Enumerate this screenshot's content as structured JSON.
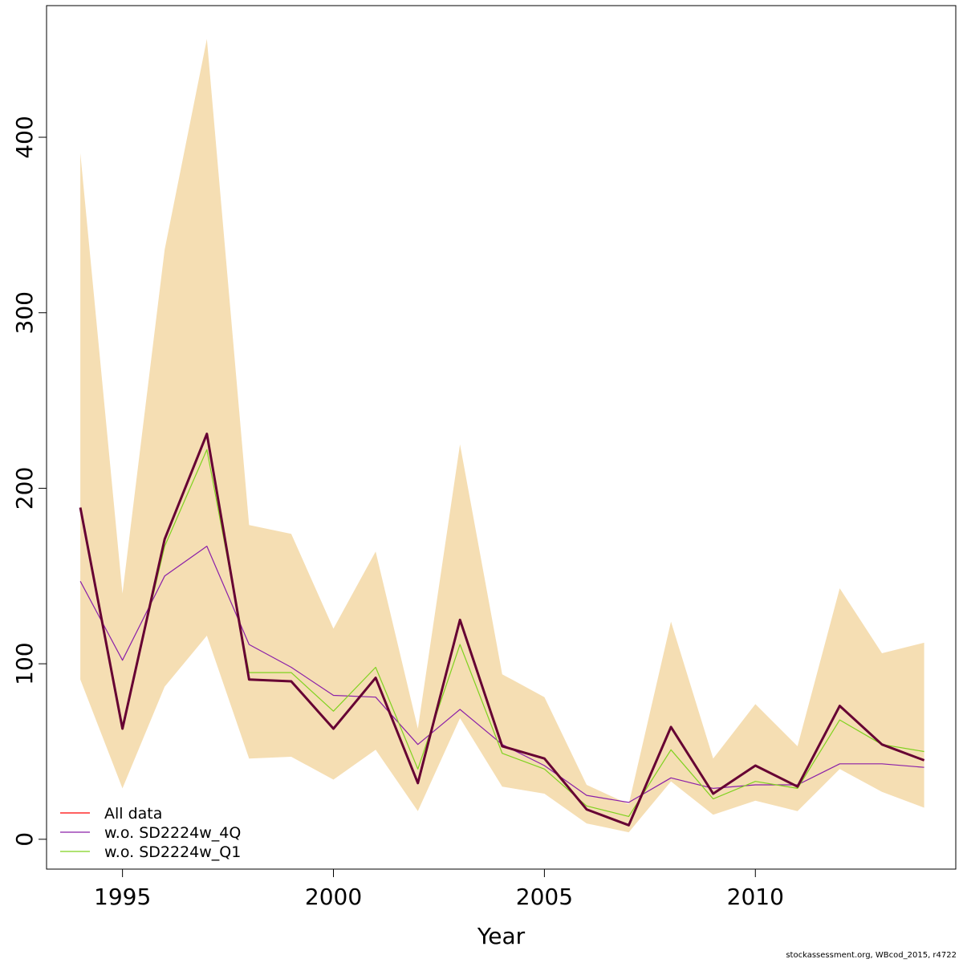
{
  "chart_data": {
    "type": "line",
    "title": "",
    "xlabel": "Year",
    "ylabel": "",
    "xlim": [
      1993.2,
      2014.75
    ],
    "ylim": [
      -17,
      475
    ],
    "x_ticks": [
      1995,
      2000,
      2005,
      2010
    ],
    "y_ticks": [
      0,
      100,
      200,
      300,
      400
    ],
    "grid": false,
    "legend_position": "bottom-left",
    "years": [
      1994,
      1995,
      1996,
      1997,
      1998,
      1999,
      2000,
      2001,
      2002,
      2003,
      2004,
      2005,
      2006,
      2007,
      2008,
      2009,
      2010,
      2011,
      2012,
      2013,
      2014
    ],
    "band": {
      "color": "#f5deb3",
      "lower": [
        91,
        29,
        87,
        116,
        46,
        47,
        34,
        51,
        16,
        69,
        30,
        26,
        9,
        4,
        33,
        14,
        22,
        16,
        40,
        27,
        18
      ],
      "upper": [
        391,
        140,
        336,
        456,
        179,
        174,
        120,
        164,
        63,
        225,
        94,
        81,
        31,
        20,
        124,
        46,
        77,
        53,
        143,
        106,
        112
      ]
    },
    "series": [
      {
        "name": "All data",
        "color": "#ff0000",
        "width": 1.5,
        "values": [
          189,
          63,
          171,
          231,
          91,
          90,
          63,
          92,
          32,
          125,
          53,
          46,
          17,
          8,
          64,
          26,
          42,
          30,
          76,
          54,
          45
        ]
      },
      {
        "name": "w.o. SD2224w_4Q",
        "color": "#8b1fa8",
        "width": 1.2,
        "values": [
          147,
          102,
          150,
          167,
          111,
          98,
          82,
          81,
          54,
          74,
          54,
          42,
          25,
          21,
          35,
          29,
          31,
          31,
          43,
          43,
          41
        ]
      },
      {
        "name": "w.o. SD2224w_Q1",
        "color": "#7fd21f",
        "width": 1.2,
        "values": [
          189,
          65,
          167,
          222,
          95,
          95,
          73,
          98,
          40,
          111,
          49,
          40,
          19,
          13,
          51,
          23,
          33,
          29,
          68,
          54,
          50
        ]
      }
    ],
    "base_line": {
      "color": "#660033",
      "width": 3,
      "values": [
        189,
        63,
        171,
        231,
        91,
        90,
        63,
        92,
        32,
        125,
        53,
        46,
        17,
        8,
        64,
        26,
        42,
        30,
        76,
        54,
        45
      ]
    }
  },
  "footer_text": "stockassessment.org, WBcod_2015, r4722"
}
